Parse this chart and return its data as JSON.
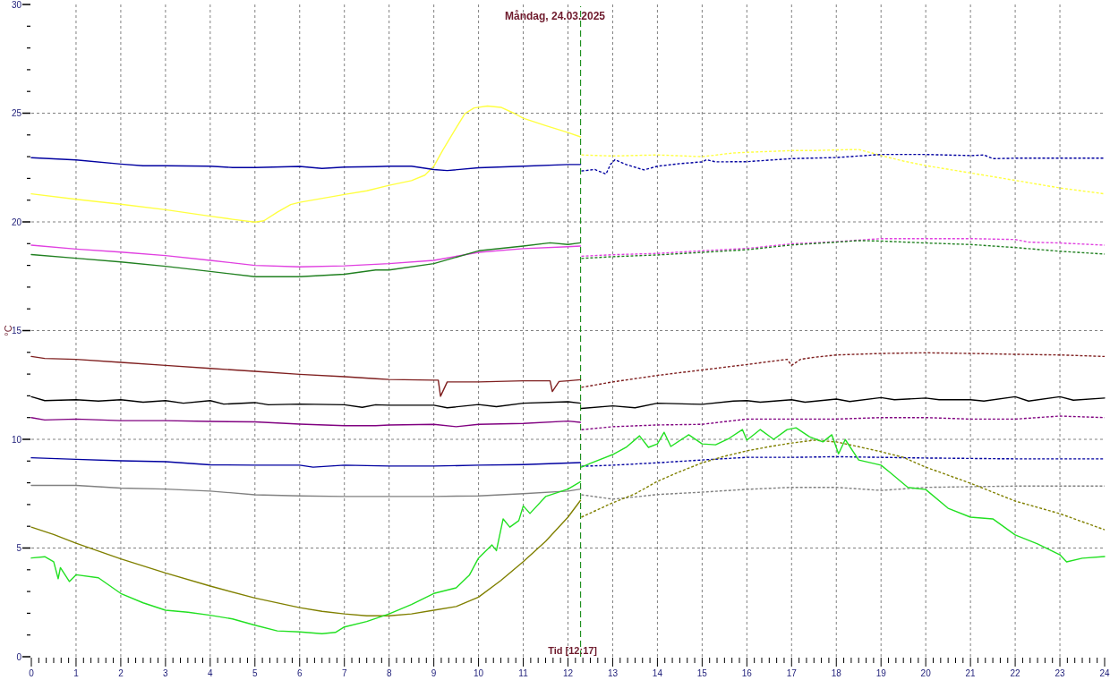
{
  "chart_data": {
    "type": "line",
    "title": "Måndag, 24.03.2025",
    "ylabel": "°C",
    "xlim": [
      0,
      24
    ],
    "ylim": [
      0,
      30
    ],
    "grid": true,
    "xticks": [
      0,
      {
        "value": 0.1667,
        "label": null
      },
      {
        "value": 0.3333,
        "label": null
      },
      {
        "value": 0.5,
        "label": null
      },
      {
        "value": 0.6667,
        "label": null
      },
      {
        "value": 0.8333,
        "label": null
      },
      1,
      {
        "value": 1.1667,
        "label": null
      },
      {
        "value": 1.3333,
        "label": null
      },
      {
        "value": 1.5,
        "label": null
      },
      {
        "value": 1.6667,
        "label": null
      },
      {
        "value": 1.8333,
        "label": null
      },
      2,
      {
        "value": 2.1667,
        "label": null
      },
      {
        "value": 2.3333,
        "label": null
      },
      {
        "value": 2.5,
        "label": null
      },
      {
        "value": 2.6667,
        "label": null
      },
      {
        "value": 2.8333,
        "label": null
      },
      3,
      {
        "value": 3.1667,
        "label": null
      },
      {
        "value": 3.3333,
        "label": null
      },
      {
        "value": 3.5,
        "label": null
      },
      {
        "value": 3.6667,
        "label": null
      },
      {
        "value": 3.8333,
        "label": null
      },
      4,
      {
        "value": 4.1667,
        "label": null
      },
      {
        "value": 4.3333,
        "label": null
      },
      {
        "value": 4.5,
        "label": null
      },
      {
        "value": 4.6667,
        "label": null
      },
      {
        "value": 4.8333,
        "label": null
      },
      5,
      {
        "value": 5.1667,
        "label": null
      },
      {
        "value": 5.3333,
        "label": null
      },
      {
        "value": 5.5,
        "label": null
      },
      {
        "value": 5.6667,
        "label": null
      },
      {
        "value": 5.8333,
        "label": null
      },
      6,
      {
        "value": 6.1667,
        "label": null
      },
      {
        "value": 6.3333,
        "label": null
      },
      {
        "value": 6.5,
        "label": null
      },
      {
        "value": 6.6667,
        "label": null
      },
      {
        "value": 6.8333,
        "label": null
      },
      7,
      {
        "value": 7.1667,
        "label": null
      },
      {
        "value": 7.3333,
        "label": null
      },
      {
        "value": 7.5,
        "label": null
      },
      {
        "value": 7.6667,
        "label": null
      },
      {
        "value": 7.8333,
        "label": null
      },
      8,
      {
        "value": 8.1667,
        "label": null
      },
      {
        "value": 8.3333,
        "label": null
      },
      {
        "value": 8.5,
        "label": null
      },
      {
        "value": 8.6667,
        "label": null
      },
      {
        "value": 8.8333,
        "label": null
      },
      9,
      {
        "value": 9.1667,
        "label": null
      },
      {
        "value": 9.3333,
        "label": null
      },
      {
        "value": 9.5,
        "label": null
      },
      {
        "value": 9.6667,
        "label": null
      },
      {
        "value": 9.8333,
        "label": null
      },
      10,
      {
        "value": 10.1667,
        "label": null
      },
      {
        "value": 10.3333,
        "label": null
      },
      {
        "value": 10.5,
        "label": null
      },
      {
        "value": 10.6667,
        "label": null
      },
      {
        "value": 10.8333,
        "label": null
      },
      11,
      {
        "value": 11.1667,
        "label": null
      },
      {
        "value": 11.3333,
        "label": null
      },
      {
        "value": 11.5,
        "label": null
      },
      {
        "value": 11.6667,
        "label": null
      },
      {
        "value": 11.8333,
        "label": null
      },
      12,
      {
        "value": 12.1667,
        "label": null
      },
      {
        "value": 12.3333,
        "label": null
      },
      {
        "value": 12.5,
        "label": null
      },
      {
        "value": 12.6667,
        "label": null
      },
      {
        "value": 12.8333,
        "label": null
      },
      13,
      {
        "value": 13.1667,
        "label": null
      },
      {
        "value": 13.3333,
        "label": null
      },
      {
        "value": 13.5,
        "label": null
      },
      {
        "value": 13.6667,
        "label": null
      },
      {
        "value": 13.8333,
        "label": null
      },
      14,
      {
        "value": 14.1667,
        "label": null
      },
      {
        "value": 14.3333,
        "label": null
      },
      {
        "value": 14.5,
        "label": null
      },
      {
        "value": 14.6667,
        "label": null
      },
      {
        "value": 14.8333,
        "label": null
      },
      15,
      {
        "value": 15.1667,
        "label": null
      },
      {
        "value": 15.3333,
        "label": null
      },
      {
        "value": 15.5,
        "label": null
      },
      {
        "value": 15.6667,
        "label": null
      },
      {
        "value": 15.8333,
        "label": null
      },
      16,
      {
        "value": 16.1667,
        "label": null
      },
      {
        "value": 16.3333,
        "label": null
      },
      {
        "value": 16.5,
        "label": null
      },
      {
        "value": 16.6667,
        "label": null
      },
      {
        "value": 16.8333,
        "label": null
      },
      17,
      {
        "value": 17.1667,
        "label": null
      },
      {
        "value": 17.3333,
        "label": null
      },
      {
        "value": 17.5,
        "label": null
      },
      {
        "value": 17.6667,
        "label": null
      },
      {
        "value": 17.8333,
        "label": null
      },
      18,
      {
        "value": 18.1667,
        "label": null
      },
      {
        "value": 18.3333,
        "label": null
      },
      {
        "value": 18.5,
        "label": null
      },
      {
        "value": 18.6667,
        "label": null
      },
      {
        "value": 18.8333,
        "label": null
      },
      19,
      {
        "value": 19.1667,
        "label": null
      },
      {
        "value": 19.3333,
        "label": null
      },
      {
        "value": 19.5,
        "label": null
      },
      {
        "value": 19.6667,
        "label": null
      },
      {
        "value": 19.8333,
        "label": null
      },
      20,
      {
        "value": 20.1667,
        "label": null
      },
      {
        "value": 20.3333,
        "label": null
      },
      {
        "value": 20.5,
        "label": null
      },
      {
        "value": 20.6667,
        "label": null
      },
      {
        "value": 20.8333,
        "label": null
      },
      21,
      {
        "value": 21.1667,
        "label": null
      },
      {
        "value": 21.3333,
        "label": null
      },
      {
        "value": 21.5,
        "label": null
      },
      {
        "value": 21.6667,
        "label": null
      },
      {
        "value": 21.8333,
        "label": null
      },
      22,
      {
        "value": 22.1667,
        "label": null
      },
      {
        "value": 22.3333,
        "label": null
      },
      {
        "value": 22.5,
        "label": null
      },
      {
        "value": 22.6667,
        "label": null
      },
      {
        "value": 22.8333,
        "label": null
      },
      23,
      {
        "value": 23.1667,
        "label": null
      },
      {
        "value": 23.3333,
        "label": null
      },
      {
        "value": 23.5,
        "label": null
      },
      {
        "value": 23.6667,
        "label": null
      },
      {
        "value": 23.8333,
        "label": null
      },
      24
    ],
    "yticks": [
      0,
      {
        "value": 1,
        "label": null
      },
      {
        "value": 2,
        "label": null
      },
      {
        "value": 3,
        "label": null
      },
      {
        "value": 4,
        "label": null
      },
      5,
      {
        "value": 6,
        "label": null
      },
      {
        "value": 7,
        "label": null
      },
      {
        "value": 8,
        "label": null
      },
      {
        "value": 9,
        "label": null
      },
      10,
      {
        "value": 11,
        "label": null
      },
      {
        "value": 12,
        "label": null
      },
      {
        "value": 13,
        "label": null
      },
      {
        "value": 14,
        "label": null
      },
      15,
      {
        "value": 16,
        "label": null
      },
      {
        "value": 17,
        "label": null
      },
      {
        "value": 18,
        "label": null
      },
      {
        "value": 19,
        "label": null
      },
      20,
      {
        "value": 21,
        "label": null
      },
      {
        "value": 22,
        "label": null
      },
      {
        "value": 23,
        "label": null
      },
      {
        "value": 24,
        "label": null
      },
      25,
      {
        "value": 26,
        "label": null
      },
      {
        "value": 27,
        "label": null
      },
      {
        "value": 28,
        "label": null
      },
      {
        "value": 29,
        "label": null
      },
      30
    ],
    "ref_lines": [
      {
        "axis": "x",
        "value": 12.283,
        "label": "Tid [12:17]",
        "color": "#008000",
        "line_style": "dashed"
      }
    ],
    "series": [
      {
        "color": "#ffff40",
        "line_style": "solid",
        "x": [
          0,
          1,
          2,
          3,
          4,
          4.5,
          5,
          5.2,
          5.5,
          5.8,
          6,
          7,
          7.5,
          8,
          8.5,
          8.8,
          9,
          9.2,
          9.5,
          9.7,
          9.9,
          10.2,
          10.5,
          10.8,
          11,
          11.5,
          12,
          12.28
        ],
        "values": [
          21.29,
          21.04,
          20.81,
          20.56,
          20.26,
          20.12,
          19.99,
          20.05,
          20.45,
          20.8,
          20.9,
          21.26,
          21.43,
          21.68,
          21.9,
          22.15,
          22.56,
          23.3,
          24.33,
          24.99,
          25.24,
          25.33,
          25.27,
          24.99,
          24.77,
          24.43,
          24.11,
          23.91
        ]
      },
      {
        "color": "#ffff40",
        "line_style": "dashed",
        "x": [
          12.3,
          13,
          14,
          15,
          15.7,
          16,
          17,
          17.5,
          18,
          18.5,
          18.8,
          19,
          19.5,
          20,
          21,
          22,
          23,
          24
        ],
        "values": [
          23.08,
          23.03,
          23.08,
          23.0,
          23.17,
          23.2,
          23.28,
          23.28,
          23.31,
          23.33,
          23.17,
          23.05,
          22.8,
          22.59,
          22.25,
          21.91,
          21.56,
          21.29
        ]
      },
      {
        "color": "#0000a0",
        "line_style": "solid",
        "x": [
          0,
          0.5,
          1,
          2,
          2.5,
          3,
          4,
          4.5,
          5,
          6,
          6.5,
          7,
          7.7,
          8,
          8.5,
          9,
          9.3,
          10,
          11,
          12,
          12.28
        ],
        "values": [
          22.95,
          22.9,
          22.85,
          22.66,
          22.58,
          22.58,
          22.56,
          22.5,
          22.5,
          22.55,
          22.46,
          22.52,
          22.54,
          22.56,
          22.56,
          22.41,
          22.36,
          22.49,
          22.56,
          22.64,
          22.64
        ]
      },
      {
        "color": "#0000a0",
        "line_style": "dashed",
        "x": [
          12.3,
          12.6,
          12.85,
          12.95,
          13.05,
          13.3,
          13.7,
          14,
          14.5,
          15,
          15.1,
          15.3,
          16,
          17,
          18,
          19,
          20,
          21,
          21.3,
          21.5,
          22,
          23,
          24
        ],
        "values": [
          22.34,
          22.41,
          22.2,
          22.64,
          22.86,
          22.64,
          22.39,
          22.56,
          22.68,
          22.76,
          22.86,
          22.76,
          22.77,
          22.91,
          22.96,
          23.1,
          23.1,
          23.05,
          23.08,
          22.91,
          22.93,
          22.93,
          22.93
        ]
      },
      {
        "color": "#e040e0",
        "line_style": "solid",
        "x": [
          0,
          1,
          2,
          3,
          4,
          5,
          6,
          7,
          7.7,
          8,
          9,
          10,
          11,
          12,
          12.28
        ],
        "values": [
          18.93,
          18.75,
          18.61,
          18.45,
          18.23,
          18.0,
          17.93,
          17.98,
          18.05,
          18.08,
          18.23,
          18.6,
          18.77,
          18.86,
          18.89
        ]
      },
      {
        "color": "#e040e0",
        "line_style": "dashed",
        "x": [
          12.3,
          13,
          14,
          15,
          16,
          17,
          18,
          19,
          20,
          21,
          22,
          22.3,
          23,
          24
        ],
        "values": [
          18.42,
          18.49,
          18.55,
          18.67,
          18.78,
          18.99,
          19.09,
          19.23,
          19.23,
          19.23,
          19.19,
          19.07,
          19.03,
          18.93
        ]
      },
      {
        "color": "#208020",
        "line_style": "solid",
        "x": [
          0,
          1,
          2,
          3,
          4,
          5,
          6,
          7,
          7.7,
          8,
          9,
          10,
          11,
          11.6,
          12,
          12.28
        ],
        "values": [
          18.5,
          18.33,
          18.16,
          17.96,
          17.72,
          17.48,
          17.48,
          17.59,
          17.79,
          17.79,
          18.08,
          18.67,
          18.89,
          19.04,
          18.96,
          19.04
        ]
      },
      {
        "color": "#208020",
        "line_style": "dashed",
        "x": [
          12.3,
          13,
          14,
          15,
          16,
          17,
          18,
          18.5,
          19,
          20,
          21,
          22,
          23,
          24
        ],
        "values": [
          18.32,
          18.4,
          18.48,
          18.6,
          18.72,
          18.94,
          19.07,
          19.14,
          19.12,
          19.03,
          18.96,
          18.82,
          18.65,
          18.52
        ]
      },
      {
        "color": "#7f1f1f",
        "line_style": "solid",
        "x": [
          0,
          0.3,
          1,
          2,
          3,
          4,
          5,
          6,
          7,
          7.7,
          8,
          9,
          9.1,
          9.15,
          9.3,
          10,
          11,
          11.6,
          11.65,
          11.8,
          12,
          12.28
        ],
        "values": [
          13.81,
          13.72,
          13.68,
          13.54,
          13.4,
          13.26,
          13.13,
          12.99,
          12.88,
          12.79,
          12.75,
          12.72,
          12.72,
          11.98,
          12.64,
          12.64,
          12.69,
          12.69,
          12.2,
          12.66,
          12.69,
          12.74
        ]
      },
      {
        "color": "#7f1f1f",
        "line_style": "dashed",
        "x": [
          12.3,
          13,
          14,
          15,
          16,
          16.9,
          17,
          17.2,
          17.5,
          18,
          19,
          20,
          21,
          22,
          23,
          24
        ],
        "values": [
          12.39,
          12.64,
          12.94,
          13.19,
          13.44,
          13.68,
          13.4,
          13.68,
          13.77,
          13.88,
          13.95,
          13.98,
          13.95,
          13.91,
          13.88,
          13.81
        ]
      },
      {
        "color": "#000000",
        "line_style": "solid",
        "x": [
          0,
          0.3,
          1,
          1.5,
          2,
          2.5,
          3,
          3.4,
          4,
          4.3,
          5,
          5.3,
          6,
          7,
          7.4,
          7.7,
          8,
          9,
          9.3,
          10,
          10.4,
          11,
          12,
          12.28
        ],
        "values": [
          11.96,
          11.78,
          11.82,
          11.76,
          11.82,
          11.71,
          11.78,
          11.66,
          11.78,
          11.62,
          11.69,
          11.59,
          11.62,
          11.59,
          11.47,
          11.59,
          11.57,
          11.57,
          11.45,
          11.6,
          11.5,
          11.66,
          11.73,
          11.66
        ]
      },
      {
        "color": "#000000",
        "line_style": "solid",
        "x": [
          12.3,
          13,
          13.5,
          14,
          15,
          15.7,
          16,
          16.3,
          17,
          17.3,
          18,
          18.3,
          19,
          19.3,
          20,
          20.3,
          21,
          21.3,
          22,
          22.3,
          23,
          23.3,
          24
        ],
        "values": [
          11.42,
          11.54,
          11.45,
          11.66,
          11.61,
          11.76,
          11.78,
          11.71,
          11.82,
          11.71,
          11.85,
          11.74,
          11.92,
          11.82,
          11.9,
          11.82,
          11.82,
          11.76,
          11.96,
          11.76,
          11.96,
          11.8,
          11.9
        ]
      },
      {
        "color": "#800080",
        "line_style": "solid",
        "x": [
          0,
          0.3,
          1,
          2,
          3,
          4,
          5,
          6,
          7,
          7.7,
          8,
          9,
          9.5,
          10,
          11,
          12,
          12.28
        ],
        "values": [
          11.0,
          10.89,
          10.93,
          10.86,
          10.86,
          10.82,
          10.8,
          10.7,
          10.63,
          10.63,
          10.66,
          10.69,
          10.58,
          10.69,
          10.73,
          10.84,
          10.78
        ]
      },
      {
        "color": "#800080",
        "line_style": "dashed",
        "x": [
          12.3,
          13,
          14,
          15,
          15.7,
          16,
          17,
          18,
          19,
          20,
          21,
          22,
          23,
          24
        ],
        "values": [
          10.44,
          10.58,
          10.66,
          10.69,
          10.86,
          10.93,
          10.93,
          10.93,
          11.0,
          11.0,
          10.93,
          10.93,
          11.07,
          11.0
        ]
      },
      {
        "color": "#0000a0",
        "line_style": "solid",
        "x": [
          0,
          1,
          2,
          3,
          4,
          5,
          6,
          6.3,
          7,
          8,
          9,
          10,
          11,
          12,
          12.28
        ],
        "values": [
          9.15,
          9.08,
          9.01,
          8.97,
          8.83,
          8.81,
          8.81,
          8.72,
          8.81,
          8.77,
          8.77,
          8.81,
          8.84,
          8.91,
          8.93
        ]
      },
      {
        "color": "#0000a0",
        "line_style": "dashed",
        "x": [
          12.3,
          13,
          14,
          15,
          16,
          17,
          18,
          19,
          20,
          21,
          22,
          23,
          24
        ],
        "values": [
          8.76,
          8.81,
          8.92,
          9.05,
          9.17,
          9.17,
          9.2,
          9.17,
          9.14,
          9.12,
          9.1,
          9.1,
          9.1
        ]
      },
      {
        "color": "#808080",
        "line_style": "solid",
        "x": [
          0,
          1,
          2,
          3,
          4,
          5,
          6,
          7,
          8,
          9,
          10,
          11,
          12,
          12.28
        ],
        "values": [
          7.88,
          7.88,
          7.76,
          7.71,
          7.62,
          7.45,
          7.4,
          7.37,
          7.37,
          7.37,
          7.4,
          7.5,
          7.62,
          7.71
        ]
      },
      {
        "color": "#808080",
        "line_style": "dashed",
        "x": [
          12.3,
          13,
          13.5,
          14,
          15,
          16,
          17,
          18,
          19,
          20,
          21,
          22,
          23,
          24
        ],
        "values": [
          7.45,
          7.25,
          7.35,
          7.46,
          7.57,
          7.7,
          7.79,
          7.79,
          7.65,
          7.79,
          7.82,
          7.85,
          7.85,
          7.85
        ]
      },
      {
        "color": "#808000",
        "line_style": "solid",
        "x": [
          0,
          0.5,
          1,
          2,
          3,
          4,
          5,
          6,
          6.5,
          7,
          7.5,
          8,
          8.5,
          9,
          9.5,
          10,
          10.5,
          11,
          11.5,
          12,
          12.28
        ],
        "values": [
          5.96,
          5.62,
          5.22,
          4.5,
          3.85,
          3.25,
          2.7,
          2.26,
          2.09,
          1.97,
          1.88,
          1.88,
          1.97,
          2.14,
          2.31,
          2.74,
          3.51,
          4.37,
          5.31,
          6.42,
          7.19
        ]
      },
      {
        "color": "#808000",
        "line_style": "dashed",
        "x": [
          12.3,
          13,
          13.5,
          14,
          14.5,
          15,
          15.5,
          16,
          16.5,
          17,
          17.5,
          18,
          18.5,
          19,
          19.5,
          20,
          21,
          22,
          23,
          24
        ],
        "values": [
          6.42,
          7.08,
          7.49,
          8.07,
          8.51,
          8.92,
          9.22,
          9.47,
          9.66,
          9.83,
          9.96,
          9.88,
          9.66,
          9.43,
          9.17,
          8.72,
          7.98,
          7.16,
          6.58,
          5.84
        ]
      },
      {
        "color": "#22e022",
        "line_style": "solid",
        "x": [
          0,
          0.3,
          0.5,
          0.6,
          0.65,
          0.85,
          1,
          1.5,
          2,
          2.5,
          3,
          3.5,
          4,
          4.5,
          5,
          5.5,
          6,
          6.5,
          6.8,
          7,
          7.5,
          8,
          8.5,
          9,
          9.5,
          9.8,
          10,
          10.3,
          10.4,
          10.55,
          10.7,
          10.9,
          11,
          11.15,
          11.5,
          12,
          12.28
        ],
        "values": [
          4.54,
          4.6,
          4.37,
          3.59,
          4.1,
          3.46,
          3.77,
          3.63,
          2.91,
          2.48,
          2.14,
          2.05,
          1.91,
          1.74,
          1.45,
          1.19,
          1.14,
          1.06,
          1.12,
          1.37,
          1.62,
          1.97,
          2.4,
          2.91,
          3.17,
          3.77,
          4.54,
          5.14,
          4.88,
          6.34,
          5.96,
          6.26,
          6.94,
          6.59,
          7.37,
          7.71,
          8.05
        ]
      },
      {
        "color": "#22e022",
        "line_style": "solid",
        "x": [
          12.3,
          12.5,
          13,
          13.3,
          13.6,
          13.8,
          14,
          14.15,
          14.3,
          14.7,
          15,
          15.3,
          15.6,
          15.9,
          16,
          16.3,
          16.6,
          16.9,
          17.1,
          17.4,
          17.7,
          17.9,
          18.05,
          18.2,
          18.5,
          19,
          19.2,
          19.6,
          20,
          20.5,
          21,
          21.5,
          22,
          22.5,
          23,
          23.15,
          23.5,
          24
        ],
        "values": [
          8.72,
          8.89,
          9.3,
          9.63,
          10.16,
          9.63,
          9.79,
          10.32,
          9.67,
          10.21,
          9.79,
          9.75,
          10.04,
          10.45,
          9.96,
          10.45,
          10.0,
          10.45,
          10.53,
          10.12,
          9.88,
          10.21,
          9.33,
          9.99,
          9.05,
          8.81,
          8.48,
          7.79,
          7.69,
          6.83,
          6.42,
          6.34,
          5.6,
          5.19,
          4.69,
          4.36,
          4.53,
          4.61
        ]
      }
    ]
  }
}
